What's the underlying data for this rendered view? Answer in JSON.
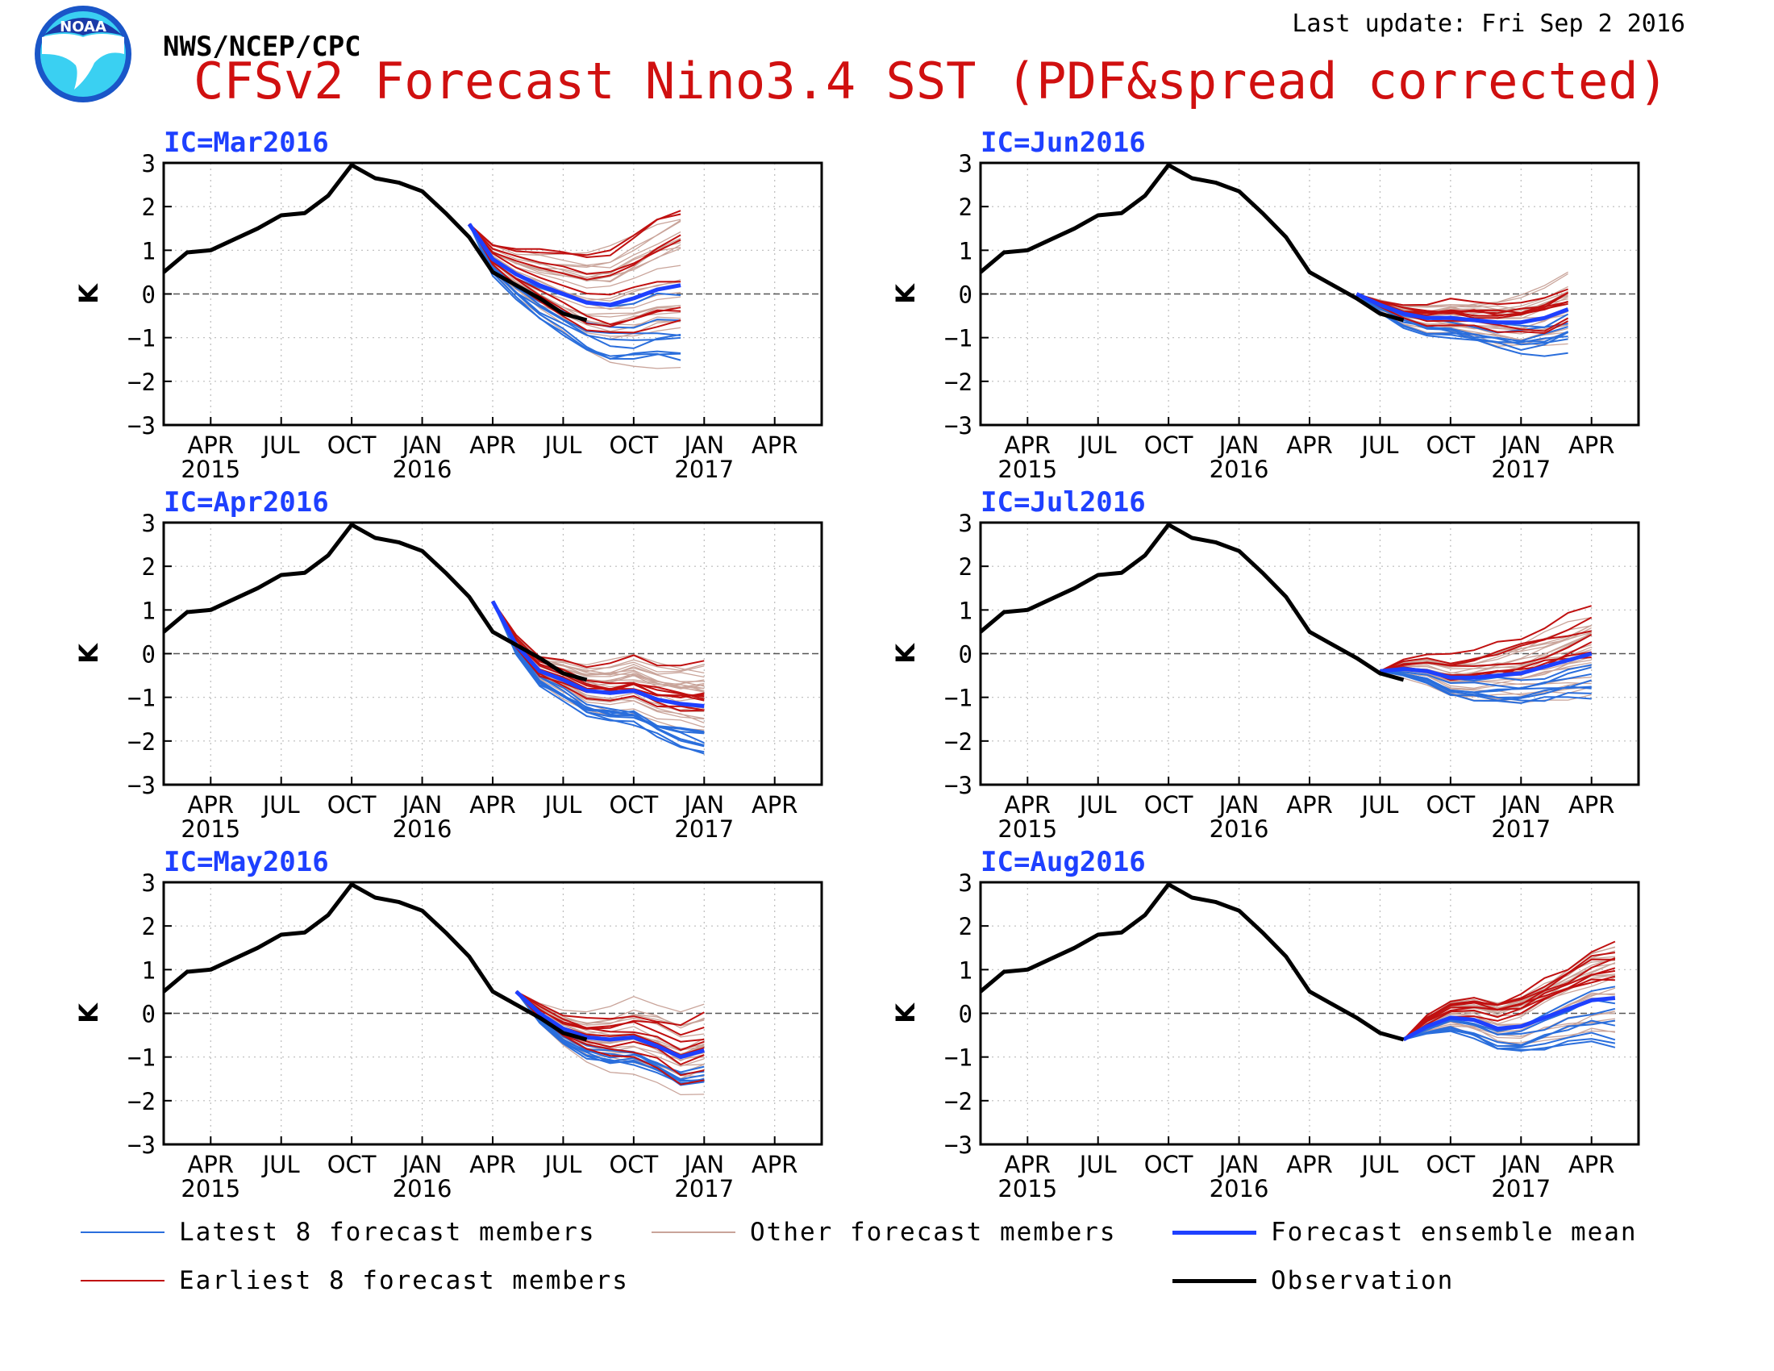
{
  "header": {
    "org": "NWS/NCEP/CPC",
    "logo_text": "NOAA",
    "last_update": "Last update: Fri Sep 2 2016",
    "title": "CFSv2 Forecast Nino3.4 SST (PDF&spread corrected)"
  },
  "colors": {
    "latest": "#2a6edc",
    "earliest": "#c01010",
    "other": "#c9a49a",
    "mean": "#1e40ff",
    "observation": "#000000",
    "title": "#d01010",
    "panel_title": "#1e40ff"
  },
  "legend": {
    "latest": "Latest 8 forecast members",
    "earliest": "Earliest 8 forecast members",
    "other": "Other forecast members",
    "mean": "Forecast ensemble mean",
    "observation": "Observation"
  },
  "chart_data": [
    {
      "type": "line",
      "title": "IC=Mar2016",
      "ylabel": "K",
      "ylim": [
        -3,
        3
      ],
      "yticks": [
        "3",
        "2",
        "1",
        "0",
        "−1",
        "−2",
        "−3"
      ],
      "xticks": [
        "APR",
        "JUL",
        "OCT",
        "JAN",
        "APR",
        "JUL",
        "OCT",
        "JAN",
        "APR"
      ],
      "years": [
        "2015",
        "2016",
        "2017"
      ],
      "xlim": [
        "2015-02",
        "2017-06"
      ],
      "observation": {
        "x": [
          "2015-02",
          "2015-03",
          "2015-04",
          "2015-05",
          "2015-06",
          "2015-07",
          "2015-08",
          "2015-09",
          "2015-10",
          "2015-11",
          "2015-12",
          "2016-01",
          "2016-02",
          "2016-03",
          "2016-04",
          "2016-05",
          "2016-06",
          "2016-07",
          "2016-08"
        ],
        "y": [
          0.5,
          0.95,
          1.0,
          1.25,
          1.5,
          1.8,
          1.85,
          2.25,
          2.95,
          2.65,
          2.55,
          2.35,
          1.85,
          1.3,
          0.5,
          0.2,
          -0.1,
          -0.45,
          -0.6
        ]
      },
      "ensemble_mean": {
        "x": [
          "2016-03",
          "2016-04",
          "2016-05",
          "2016-06",
          "2016-07",
          "2016-08",
          "2016-09",
          "2016-10",
          "2016-11",
          "2016-12"
        ],
        "y": [
          1.6,
          0.8,
          0.45,
          0.2,
          0.0,
          -0.2,
          -0.25,
          -0.1,
          0.1,
          0.2
        ]
      },
      "members_start": "2016-03",
      "members_end": "2016-12",
      "members_start_value": 1.6,
      "members_spread": 1.7,
      "members_drift": 0.3
    },
    {
      "type": "line",
      "title": "IC=Apr2016",
      "ylabel": "K",
      "ylim": [
        -3,
        3
      ],
      "yticks": [
        "3",
        "2",
        "1",
        "0",
        "−1",
        "−2",
        "−3"
      ],
      "xticks": [
        "APR",
        "JUL",
        "OCT",
        "JAN",
        "APR",
        "JUL",
        "OCT",
        "JAN",
        "APR"
      ],
      "years": [
        "2015",
        "2016",
        "2017"
      ],
      "xlim": [
        "2015-02",
        "2017-06"
      ],
      "observation": {
        "x": [
          "2015-02",
          "2015-03",
          "2015-04",
          "2015-05",
          "2015-06",
          "2015-07",
          "2015-08",
          "2015-09",
          "2015-10",
          "2015-11",
          "2015-12",
          "2016-01",
          "2016-02",
          "2016-03",
          "2016-04",
          "2016-05",
          "2016-06",
          "2016-07",
          "2016-08"
        ],
        "y": [
          0.5,
          0.95,
          1.0,
          1.25,
          1.5,
          1.8,
          1.85,
          2.25,
          2.95,
          2.65,
          2.55,
          2.35,
          1.85,
          1.3,
          0.5,
          0.2,
          -0.1,
          -0.45,
          -0.6
        ]
      },
      "ensemble_mean": {
        "x": [
          "2016-04",
          "2016-05",
          "2016-06",
          "2016-07",
          "2016-08",
          "2016-09",
          "2016-10",
          "2016-11",
          "2016-12",
          "2017-01"
        ],
        "y": [
          1.2,
          0.2,
          -0.4,
          -0.6,
          -0.85,
          -0.9,
          -0.85,
          -1.05,
          -1.15,
          -1.2
        ]
      },
      "members_start": "2016-04",
      "members_end": "2017-01",
      "members_start_value": 1.2,
      "members_spread": 0.9,
      "members_drift": 0.0
    },
    {
      "type": "line",
      "title": "IC=May2016",
      "ylabel": "K",
      "ylim": [
        -3,
        3
      ],
      "yticks": [
        "3",
        "2",
        "1",
        "0",
        "−1",
        "−2",
        "−3"
      ],
      "xticks": [
        "APR",
        "JUL",
        "OCT",
        "JAN",
        "APR",
        "JUL",
        "OCT",
        "JAN",
        "APR"
      ],
      "years": [
        "2015",
        "2016",
        "2017"
      ],
      "xlim": [
        "2015-02",
        "2017-06"
      ],
      "observation": {
        "x": [
          "2015-02",
          "2015-03",
          "2015-04",
          "2015-05",
          "2015-06",
          "2015-07",
          "2015-08",
          "2015-09",
          "2015-10",
          "2015-11",
          "2015-12",
          "2016-01",
          "2016-02",
          "2016-03",
          "2016-04",
          "2016-05",
          "2016-06",
          "2016-07",
          "2016-08"
        ],
        "y": [
          0.5,
          0.95,
          1.0,
          1.25,
          1.5,
          1.8,
          1.85,
          2.25,
          2.95,
          2.65,
          2.55,
          2.35,
          1.85,
          1.3,
          0.5,
          0.2,
          -0.1,
          -0.45,
          -0.6
        ]
      },
      "ensemble_mean": {
        "x": [
          "2016-05",
          "2016-06",
          "2016-07",
          "2016-08",
          "2016-09",
          "2016-10",
          "2016-11",
          "2016-12",
          "2017-01"
        ],
        "y": [
          0.5,
          0.0,
          -0.35,
          -0.55,
          -0.6,
          -0.55,
          -0.75,
          -1.0,
          -0.85
        ]
      },
      "members_start": "2016-05",
      "members_end": "2017-01",
      "members_start_value": 0.5,
      "members_spread": 0.8,
      "members_drift": 0.0
    },
    {
      "type": "line",
      "title": "IC=Jun2016",
      "ylabel": "K",
      "ylim": [
        -3,
        3
      ],
      "yticks": [
        "3",
        "2",
        "1",
        "0",
        "−1",
        "−2",
        "−3"
      ],
      "xticks": [
        "APR",
        "JUL",
        "OCT",
        "JAN",
        "APR",
        "JUL",
        "OCT",
        "JAN",
        "APR"
      ],
      "years": [
        "2015",
        "2016",
        "2017"
      ],
      "xlim": [
        "2015-02",
        "2017-06"
      ],
      "observation": {
        "x": [
          "2015-02",
          "2015-03",
          "2015-04",
          "2015-05",
          "2015-06",
          "2015-07",
          "2015-08",
          "2015-09",
          "2015-10",
          "2015-11",
          "2015-12",
          "2016-01",
          "2016-02",
          "2016-03",
          "2016-04",
          "2016-05",
          "2016-06",
          "2016-07",
          "2016-08"
        ],
        "y": [
          0.5,
          0.95,
          1.0,
          1.25,
          1.5,
          1.8,
          1.85,
          2.25,
          2.95,
          2.65,
          2.55,
          2.35,
          1.85,
          1.3,
          0.5,
          0.2,
          -0.1,
          -0.45,
          -0.6
        ]
      },
      "ensemble_mean": {
        "x": [
          "2016-06",
          "2016-07",
          "2016-08",
          "2016-09",
          "2016-10",
          "2016-11",
          "2016-12",
          "2017-01",
          "2017-02",
          "2017-03"
        ],
        "y": [
          0.0,
          -0.25,
          -0.45,
          -0.55,
          -0.55,
          -0.6,
          -0.65,
          -0.65,
          -0.55,
          -0.35
        ]
      },
      "members_start": "2016-06",
      "members_end": "2017-03",
      "members_start_value": 0.0,
      "members_spread": 0.75,
      "members_drift": 0.0
    },
    {
      "type": "line",
      "title": "IC=Jul2016",
      "ylabel": "K",
      "ylim": [
        -3,
        3
      ],
      "yticks": [
        "3",
        "2",
        "1",
        "0",
        "−1",
        "−2",
        "−3"
      ],
      "xticks": [
        "APR",
        "JUL",
        "OCT",
        "JAN",
        "APR",
        "JUL",
        "OCT",
        "JAN",
        "APR"
      ],
      "years": [
        "2015",
        "2016",
        "2017"
      ],
      "xlim": [
        "2015-02",
        "2017-06"
      ],
      "observation": {
        "x": [
          "2015-02",
          "2015-03",
          "2015-04",
          "2015-05",
          "2015-06",
          "2015-07",
          "2015-08",
          "2015-09",
          "2015-10",
          "2015-11",
          "2015-12",
          "2016-01",
          "2016-02",
          "2016-03",
          "2016-04",
          "2016-05",
          "2016-06",
          "2016-07",
          "2016-08"
        ],
        "y": [
          0.5,
          0.95,
          1.0,
          1.25,
          1.5,
          1.8,
          1.85,
          2.25,
          2.95,
          2.65,
          2.55,
          2.35,
          1.85,
          1.3,
          0.5,
          0.2,
          -0.1,
          -0.45,
          -0.6
        ]
      },
      "ensemble_mean": {
        "x": [
          "2016-07",
          "2016-08",
          "2016-09",
          "2016-10",
          "2016-11",
          "2016-12",
          "2017-01",
          "2017-02",
          "2017-03",
          "2017-04"
        ],
        "y": [
          -0.4,
          -0.35,
          -0.4,
          -0.55,
          -0.55,
          -0.5,
          -0.45,
          -0.3,
          -0.15,
          0.0
        ]
      },
      "members_start": "2016-07",
      "members_end": "2017-04",
      "members_start_value": -0.4,
      "members_spread": 0.7,
      "members_drift": 0.2
    },
    {
      "type": "line",
      "title": "IC=Aug2016",
      "ylabel": "K",
      "ylim": [
        -3,
        3
      ],
      "yticks": [
        "3",
        "2",
        "1",
        "0",
        "−1",
        "−2",
        "−3"
      ],
      "xticks": [
        "APR",
        "JUL",
        "OCT",
        "JAN",
        "APR",
        "JUL",
        "OCT",
        "JAN",
        "APR"
      ],
      "years": [
        "2015",
        "2016",
        "2017"
      ],
      "xlim": [
        "2015-02",
        "2017-06"
      ],
      "observation": {
        "x": [
          "2015-02",
          "2015-03",
          "2015-04",
          "2015-05",
          "2015-06",
          "2015-07",
          "2015-08",
          "2015-09",
          "2015-10",
          "2015-11",
          "2015-12",
          "2016-01",
          "2016-02",
          "2016-03",
          "2016-04",
          "2016-05",
          "2016-06",
          "2016-07",
          "2016-08"
        ],
        "y": [
          0.5,
          0.95,
          1.0,
          1.25,
          1.5,
          1.8,
          1.85,
          2.25,
          2.95,
          2.65,
          2.55,
          2.35,
          1.85,
          1.3,
          0.5,
          0.2,
          -0.1,
          -0.45,
          -0.6
        ]
      },
      "ensemble_mean": {
        "x": [
          "2016-08",
          "2016-09",
          "2016-10",
          "2016-11",
          "2016-12",
          "2017-01",
          "2017-02",
          "2017-03",
          "2017-04",
          "2017-05"
        ],
        "y": [
          -0.6,
          -0.3,
          -0.1,
          -0.15,
          -0.35,
          -0.3,
          -0.1,
          0.1,
          0.3,
          0.35
        ]
      },
      "members_start": "2016-08",
      "members_end": "2017-05",
      "members_start_value": -0.6,
      "members_spread": 0.75,
      "members_drift": 0.3
    }
  ]
}
